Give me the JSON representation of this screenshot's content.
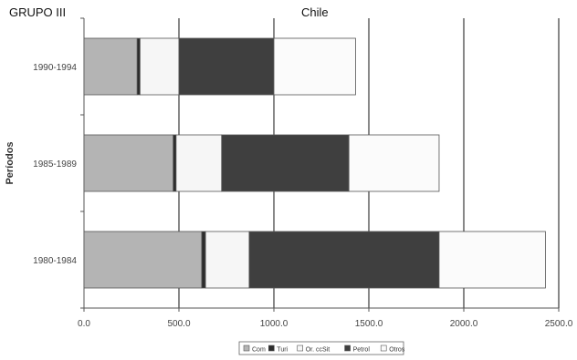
{
  "header": {
    "group_label": "GRUPO III",
    "title": "Chile"
  },
  "chart_data": {
    "type": "bar",
    "orientation": "horizontal",
    "stacked": true,
    "title": "Chile",
    "ylabel": "Períodos",
    "xlabel": "",
    "xlim": [
      0,
      2500
    ],
    "xticks": [
      0,
      500,
      1000,
      1500,
      2000,
      2500
    ],
    "tick_labels": [
      "0.0",
      "500.0",
      "1000.0",
      "1500.0",
      "2000.0",
      "2500.0"
    ],
    "grid": true,
    "legend_position": "bottom",
    "categories": [
      "1990-1994",
      "1985-1989",
      "1980-1984"
    ],
    "series": [
      {
        "name": "Com",
        "color": "#b4b4b4",
        "values": [
          280,
          470,
          620
        ]
      },
      {
        "name": "Turi",
        "color": "#2c2c2c",
        "values": [
          15,
          15,
          20
        ]
      },
      {
        "name": "Or. ccSit",
        "color": "#f6f6f6",
        "values": [
          205,
          240,
          230
        ]
      },
      {
        "name": "Petrol",
        "color": "#3f3f3f",
        "values": [
          500,
          670,
          1000
        ]
      },
      {
        "name": "Otros",
        "color": "#fbfbfb",
        "values": [
          430,
          475,
          560
        ]
      }
    ]
  }
}
